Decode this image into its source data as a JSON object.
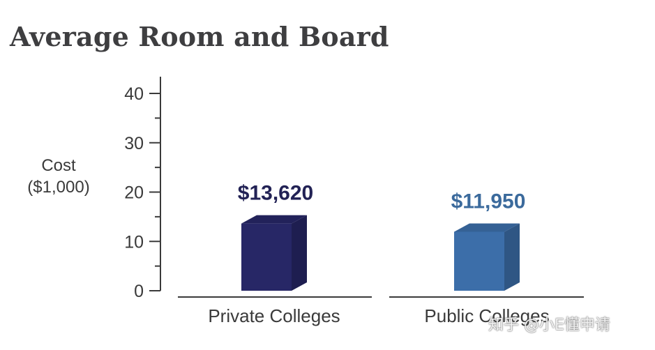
{
  "chart_data": {
    "type": "bar",
    "title": "Average Room and Board",
    "ylabel": "Cost ($1,000)",
    "ylabel_lines": [
      "Cost",
      "($1,000)"
    ],
    "xlabel": "",
    "ylim": [
      0,
      40
    ],
    "yticks": [
      0,
      10,
      20,
      30,
      40
    ],
    "grid": false,
    "categories": [
      "Private Colleges",
      "Public Colleges"
    ],
    "values": [
      13.62,
      11.95
    ],
    "data_labels": [
      "$13,620",
      "$11,950"
    ],
    "colors": [
      "#272766",
      "#3c6ea9"
    ],
    "label_colors": [
      "#222255",
      "#3b6a9c"
    ]
  },
  "watermark": "知乎 @小E懂申请"
}
